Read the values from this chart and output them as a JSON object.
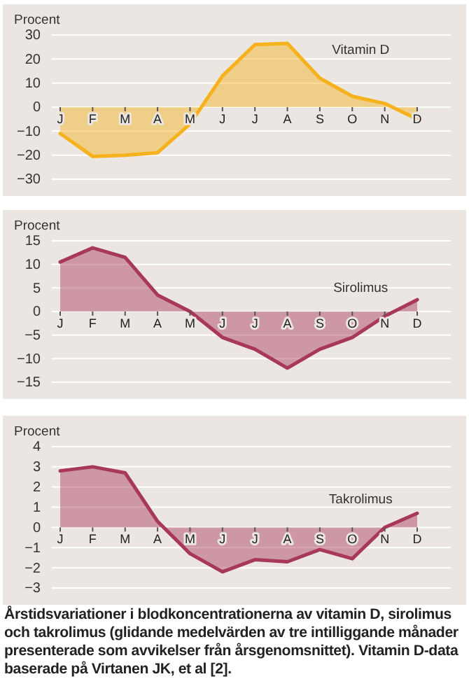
{
  "chart_data": [
    {
      "type": "area",
      "ylabel": "Procent",
      "categories": [
        "J",
        "F",
        "M",
        "A",
        "M",
        "J",
        "J",
        "A",
        "S",
        "O",
        "N",
        "D"
      ],
      "ylim": [
        -30,
        30
      ],
      "yticks": [
        -30,
        -20,
        -10,
        0,
        10,
        20,
        30
      ],
      "grid": "y",
      "series": [
        {
          "name": "Vitamin D",
          "color": "#f5b21c",
          "values": [
            -11,
            -20.5,
            -20,
            -19,
            -7,
            13,
            26,
            26.5,
            12,
            4.5,
            1.5,
            -5
          ]
        }
      ]
    },
    {
      "type": "area",
      "ylabel": "Procent",
      "categories": [
        "J",
        "F",
        "M",
        "A",
        "M",
        "J",
        "J",
        "A",
        "S",
        "O",
        "N",
        "D"
      ],
      "ylim": [
        -15,
        15
      ],
      "yticks": [
        -15,
        -10,
        -5,
        0,
        5,
        10,
        15
      ],
      "grid": "y",
      "series": [
        {
          "name": "Sirolimus",
          "color": "#a8385a",
          "values": [
            10.5,
            13.5,
            11.5,
            3.5,
            0,
            -5.5,
            -8,
            -12,
            -8,
            -5.5,
            -1,
            2.5
          ]
        }
      ]
    },
    {
      "type": "area",
      "ylabel": "Procent",
      "categories": [
        "J",
        "F",
        "M",
        "A",
        "M",
        "J",
        "J",
        "A",
        "S",
        "O",
        "N",
        "D"
      ],
      "ylim": [
        -3,
        4
      ],
      "yticks": [
        -3,
        -2,
        -1,
        0,
        1,
        2,
        3,
        4
      ],
      "grid": "y",
      "series": [
        {
          "name": "Takrolimus",
          "color": "#a8385a",
          "values": [
            2.8,
            3.0,
            2.7,
            0.3,
            -1.3,
            -2.2,
            -1.6,
            -1.7,
            -1.1,
            -1.55,
            0,
            0.7
          ]
        }
      ],
      "annotations": [
        "Årstidsvariationer i blodkoncentrationerna av vitamin D, sirolimus och takrolimus (glidande medelvärden av tre intilliggande månader presenterade som avvikelser från årsgenomsnittet). Vitamin D-data baserade på Virtanen JK, et al [2]."
      ]
    }
  ]
}
